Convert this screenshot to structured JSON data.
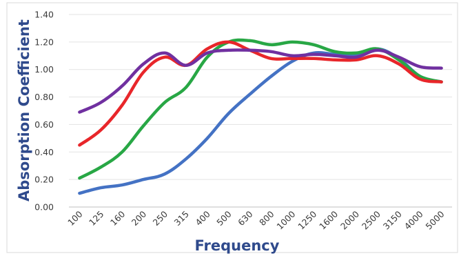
{
  "chart_data": {
    "type": "line",
    "title": "",
    "xlabel": "Frequency",
    "ylabel": "Absorption Coefficient",
    "categories": [
      "100",
      "125",
      "160",
      "200",
      "250",
      "315",
      "400",
      "500",
      "630",
      "800",
      "1000",
      "1250",
      "1600",
      "2000",
      "2500",
      "3150",
      "4000",
      "5000"
    ],
    "ylim": [
      0,
      1.4
    ],
    "yticks": [
      "0.00",
      "0.20",
      "0.40",
      "0.60",
      "0.80",
      "1.00",
      "1.20",
      "1.40"
    ],
    "grid": true,
    "legend": "none",
    "series": [
      {
        "color": "#4472c4",
        "values": [
          0.1,
          0.14,
          0.16,
          0.2,
          0.24,
          0.35,
          0.5,
          0.68,
          0.82,
          0.95,
          1.06,
          1.12,
          1.11,
          1.1,
          1.15,
          1.08,
          0.95,
          0.91
        ]
      },
      {
        "color": "#28a745",
        "values": [
          0.21,
          0.29,
          0.4,
          0.59,
          0.76,
          0.87,
          1.09,
          1.2,
          1.21,
          1.18,
          1.2,
          1.18,
          1.13,
          1.12,
          1.15,
          1.07,
          0.95,
          0.91
        ]
      },
      {
        "color": "#e8262a",
        "values": [
          0.45,
          0.56,
          0.74,
          0.98,
          1.09,
          1.03,
          1.15,
          1.2,
          1.14,
          1.08,
          1.08,
          1.08,
          1.07,
          1.07,
          1.1,
          1.04,
          0.93,
          0.91
        ]
      },
      {
        "color": "#7030a0",
        "values": [
          0.69,
          0.76,
          0.88,
          1.04,
          1.12,
          1.03,
          1.12,
          1.14,
          1.14,
          1.13,
          1.1,
          1.11,
          1.1,
          1.09,
          1.14,
          1.09,
          1.02,
          1.01
        ]
      }
    ]
  }
}
